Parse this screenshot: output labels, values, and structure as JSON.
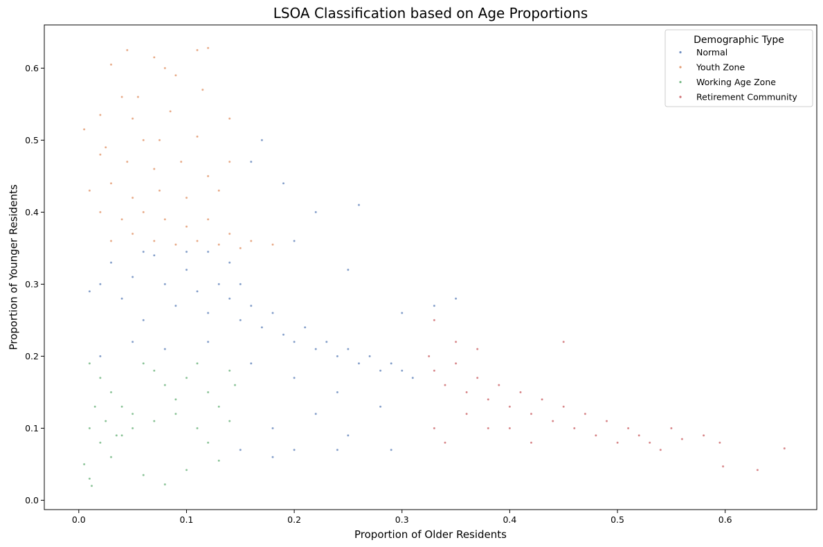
{
  "chart_data": {
    "type": "scatter",
    "title": "LSOA Classification based on Age Proportions",
    "xlabel": "Proportion of Older Residents",
    "ylabel": "Proportion of Younger Residents",
    "xlim": [
      -0.032,
      0.685
    ],
    "ylim": [
      -0.013,
      0.66
    ],
    "x_ticks": [
      "0.0",
      "0.1",
      "0.2",
      "0.3",
      "0.4",
      "0.5",
      "0.6"
    ],
    "y_ticks": [
      "0.0",
      "0.1",
      "0.2",
      "0.3",
      "0.4",
      "0.5",
      "0.6"
    ],
    "grid": false,
    "legend": {
      "title": "Demographic Type",
      "placement": "top-right"
    },
    "series": [
      {
        "name": "Normal",
        "color": "#4c72b0",
        "points": [
          [
            0.02,
            0.3
          ],
          [
            0.03,
            0.33
          ],
          [
            0.04,
            0.28
          ],
          [
            0.05,
            0.31
          ],
          [
            0.06,
            0.25
          ],
          [
            0.07,
            0.34
          ],
          [
            0.08,
            0.3
          ],
          [
            0.09,
            0.27
          ],
          [
            0.1,
            0.32
          ],
          [
            0.11,
            0.29
          ],
          [
            0.12,
            0.26
          ],
          [
            0.13,
            0.3
          ],
          [
            0.14,
            0.28
          ],
          [
            0.15,
            0.25
          ],
          [
            0.16,
            0.27
          ],
          [
            0.17,
            0.24
          ],
          [
            0.18,
            0.26
          ],
          [
            0.19,
            0.23
          ],
          [
            0.2,
            0.22
          ],
          [
            0.21,
            0.24
          ],
          [
            0.22,
            0.21
          ],
          [
            0.23,
            0.22
          ],
          [
            0.24,
            0.2
          ],
          [
            0.25,
            0.21
          ],
          [
            0.26,
            0.19
          ],
          [
            0.27,
            0.2
          ],
          [
            0.28,
            0.18
          ],
          [
            0.29,
            0.19
          ],
          [
            0.3,
            0.18
          ],
          [
            0.31,
            0.17
          ],
          [
            0.05,
            0.22
          ],
          [
            0.08,
            0.21
          ],
          [
            0.12,
            0.22
          ],
          [
            0.16,
            0.19
          ],
          [
            0.2,
            0.17
          ],
          [
            0.24,
            0.15
          ],
          [
            0.28,
            0.13
          ],
          [
            0.22,
            0.12
          ],
          [
            0.18,
            0.1
          ],
          [
            0.15,
            0.3
          ],
          [
            0.17,
            0.5
          ],
          [
            0.16,
            0.47
          ],
          [
            0.19,
            0.44
          ],
          [
            0.26,
            0.41
          ],
          [
            0.22,
            0.4
          ],
          [
            0.14,
            0.33
          ],
          [
            0.2,
            0.36
          ],
          [
            0.25,
            0.32
          ],
          [
            0.3,
            0.26
          ],
          [
            0.33,
            0.27
          ],
          [
            0.35,
            0.28
          ],
          [
            0.1,
            0.345
          ],
          [
            0.06,
            0.345
          ],
          [
            0.12,
            0.345
          ],
          [
            0.02,
            0.2
          ],
          [
            0.01,
            0.29
          ],
          [
            0.18,
            0.06
          ],
          [
            0.2,
            0.07
          ],
          [
            0.24,
            0.07
          ],
          [
            0.29,
            0.07
          ],
          [
            0.15,
            0.07
          ],
          [
            0.25,
            0.09
          ]
        ]
      },
      {
        "name": "Youth Zone",
        "color": "#dd8452",
        "points": [
          [
            0.045,
            0.625
          ],
          [
            0.07,
            0.615
          ],
          [
            0.11,
            0.625
          ],
          [
            0.12,
            0.628
          ],
          [
            0.03,
            0.605
          ],
          [
            0.09,
            0.59
          ],
          [
            0.08,
            0.6
          ],
          [
            0.115,
            0.57
          ],
          [
            0.04,
            0.56
          ],
          [
            0.055,
            0.56
          ],
          [
            0.02,
            0.535
          ],
          [
            0.05,
            0.53
          ],
          [
            0.085,
            0.54
          ],
          [
            0.14,
            0.53
          ],
          [
            0.005,
            0.515
          ],
          [
            0.025,
            0.49
          ],
          [
            0.06,
            0.5
          ],
          [
            0.075,
            0.5
          ],
          [
            0.11,
            0.505
          ],
          [
            0.02,
            0.48
          ],
          [
            0.045,
            0.47
          ],
          [
            0.07,
            0.46
          ],
          [
            0.095,
            0.47
          ],
          [
            0.12,
            0.45
          ],
          [
            0.14,
            0.47
          ],
          [
            0.01,
            0.43
          ],
          [
            0.03,
            0.44
          ],
          [
            0.05,
            0.42
          ],
          [
            0.075,
            0.43
          ],
          [
            0.1,
            0.42
          ],
          [
            0.13,
            0.43
          ],
          [
            0.02,
            0.4
          ],
          [
            0.04,
            0.39
          ],
          [
            0.06,
            0.4
          ],
          [
            0.08,
            0.39
          ],
          [
            0.1,
            0.38
          ],
          [
            0.12,
            0.39
          ],
          [
            0.14,
            0.37
          ],
          [
            0.16,
            0.36
          ],
          [
            0.18,
            0.355
          ],
          [
            0.03,
            0.36
          ],
          [
            0.05,
            0.37
          ],
          [
            0.07,
            0.36
          ],
          [
            0.09,
            0.355
          ],
          [
            0.11,
            0.36
          ],
          [
            0.13,
            0.355
          ],
          [
            0.15,
            0.35
          ]
        ]
      },
      {
        "name": "Working Age Zone",
        "color": "#55a868",
        "points": [
          [
            0.01,
            0.19
          ],
          [
            0.02,
            0.17
          ],
          [
            0.03,
            0.15
          ],
          [
            0.04,
            0.13
          ],
          [
            0.05,
            0.12
          ],
          [
            0.06,
            0.19
          ],
          [
            0.07,
            0.18
          ],
          [
            0.08,
            0.16
          ],
          [
            0.09,
            0.14
          ],
          [
            0.1,
            0.17
          ],
          [
            0.11,
            0.19
          ],
          [
            0.12,
            0.15
          ],
          [
            0.13,
            0.13
          ],
          [
            0.14,
            0.18
          ],
          [
            0.145,
            0.16
          ],
          [
            0.01,
            0.1
          ],
          [
            0.02,
            0.08
          ],
          [
            0.03,
            0.06
          ],
          [
            0.04,
            0.09
          ],
          [
            0.005,
            0.05
          ],
          [
            0.01,
            0.03
          ],
          [
            0.012,
            0.02
          ],
          [
            0.06,
            0.035
          ],
          [
            0.08,
            0.022
          ],
          [
            0.1,
            0.042
          ],
          [
            0.13,
            0.055
          ],
          [
            0.05,
            0.1
          ],
          [
            0.07,
            0.11
          ],
          [
            0.09,
            0.12
          ],
          [
            0.11,
            0.1
          ],
          [
            0.12,
            0.08
          ],
          [
            0.14,
            0.11
          ],
          [
            0.015,
            0.13
          ],
          [
            0.025,
            0.11
          ],
          [
            0.035,
            0.09
          ]
        ]
      },
      {
        "name": "Retirement Community",
        "color": "#c44e52",
        "points": [
          [
            0.325,
            0.2
          ],
          [
            0.33,
            0.18
          ],
          [
            0.34,
            0.16
          ],
          [
            0.35,
            0.19
          ],
          [
            0.36,
            0.15
          ],
          [
            0.37,
            0.17
          ],
          [
            0.38,
            0.14
          ],
          [
            0.39,
            0.16
          ],
          [
            0.4,
            0.13
          ],
          [
            0.41,
            0.15
          ],
          [
            0.42,
            0.12
          ],
          [
            0.43,
            0.14
          ],
          [
            0.44,
            0.11
          ],
          [
            0.45,
            0.13
          ],
          [
            0.46,
            0.1
          ],
          [
            0.47,
            0.12
          ],
          [
            0.48,
            0.09
          ],
          [
            0.49,
            0.11
          ],
          [
            0.5,
            0.08
          ],
          [
            0.51,
            0.1
          ],
          [
            0.52,
            0.09
          ],
          [
            0.53,
            0.08
          ],
          [
            0.54,
            0.07
          ],
          [
            0.55,
            0.1
          ],
          [
            0.56,
            0.085
          ],
          [
            0.58,
            0.09
          ],
          [
            0.595,
            0.08
          ],
          [
            0.598,
            0.047
          ],
          [
            0.63,
            0.042
          ],
          [
            0.655,
            0.072
          ],
          [
            0.45,
            0.22
          ],
          [
            0.33,
            0.25
          ],
          [
            0.34,
            0.08
          ],
          [
            0.36,
            0.12
          ],
          [
            0.38,
            0.1
          ],
          [
            0.4,
            0.1
          ],
          [
            0.42,
            0.08
          ],
          [
            0.35,
            0.22
          ],
          [
            0.33,
            0.1
          ],
          [
            0.37,
            0.21
          ]
        ]
      }
    ]
  }
}
